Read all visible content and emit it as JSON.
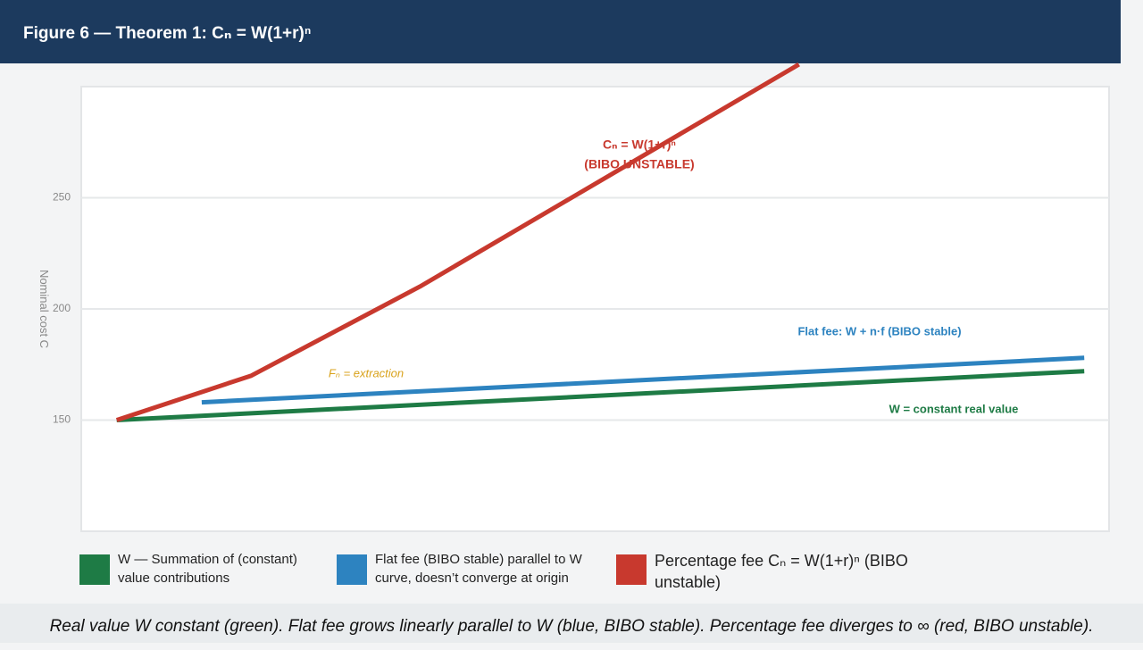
{
  "chart_data": {
    "type": "line",
    "title": "Figure 6 — Theorem 1: Cₙ = W(1+r)ⁿ",
    "y_label": "Nominal cost C",
    "xlim": [
      -1,
      28
    ],
    "ylim": [
      100,
      300
    ],
    "yticks": [
      150,
      200,
      250
    ],
    "grid": true,
    "series": [
      {
        "name": "W — Summation of (constant) value contributions",
        "color": "#1e7b45",
        "x": [
          0,
          27.3
        ],
        "values": [
          150,
          172
        ]
      },
      {
        "name": "Flat fee (BIBO stable) parallel to W curve, doesn’t converge at origin",
        "color": "#2d83c0",
        "x": [
          2.4,
          27.3
        ],
        "values": [
          158,
          178
        ]
      },
      {
        "name": "Percentage fee Cₙ = W(1+r)ⁿ (BIBO unstable)",
        "color": "#c8392e",
        "x": [
          0,
          3.8,
          8.55,
          19.25
        ],
        "values": [
          150,
          170,
          210,
          310
        ]
      }
    ],
    "annotations": [
      {
        "text": "Cₙ = W(1+r)ⁿ",
        "color": "#c8392e",
        "bold": true,
        "italic": false
      },
      {
        "text": "(BIBO UNSTABLE)",
        "color": "#c8392e",
        "bold": true,
        "italic": false
      },
      {
        "text": "Flat fee: W + n·f (BIBO stable)",
        "color": "#2d83c0",
        "bold": true,
        "italic": false
      },
      {
        "text": "W = constant real value",
        "color": "#1e7b45",
        "bold": true,
        "italic": false
      },
      {
        "text": "Fₙ = extraction",
        "color": "#d9a21b",
        "bold": false,
        "italic": true
      }
    ],
    "caption": "Real value W constant (green). Flat fee grows linearly parallel to W (blue, BIBO stable). Percentage fee diverges to ∞ (red, BIBO unstable)."
  }
}
